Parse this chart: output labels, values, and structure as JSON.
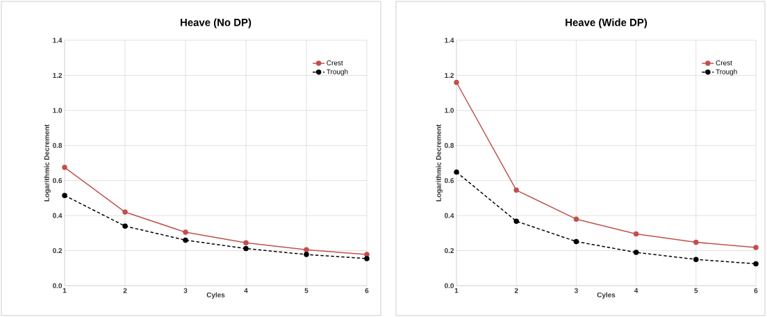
{
  "chart_data": [
    {
      "type": "line",
      "title": "Heave (No DP)",
      "xlabel": "Cyles",
      "ylabel": "Logarithmic Decrement",
      "x": [
        1,
        2,
        3,
        4,
        5,
        6
      ],
      "xlim": [
        1,
        6
      ],
      "xticks": [
        1,
        2,
        3,
        4,
        5,
        6
      ],
      "ylim": [
        0,
        1.4
      ],
      "yticks": [
        {
          "value": 0,
          "label": "0.0"
        },
        {
          "value": 0.2,
          "label": "0.2"
        },
        {
          "value": 0.4,
          "label": "0.4"
        },
        {
          "value": 0.6,
          "label": "0.6"
        },
        {
          "value": 0.8,
          "label": "0.8"
        },
        {
          "value": 1.0,
          "label": "1.0"
        },
        {
          "value": 1.2,
          "label": "1.2"
        },
        {
          "value": 1.4,
          "label": "1.4"
        }
      ],
      "grid": true,
      "legend": "top right",
      "marker": "circle",
      "series": [
        {
          "name": "Crest",
          "color": "#c0504d",
          "line_style": "solid",
          "values": [
            0.675,
            0.42,
            0.305,
            0.245,
            0.205,
            0.178
          ]
        },
        {
          "name": "Trough",
          "color": "#000000",
          "line_style": "dashed",
          "values": [
            0.515,
            0.34,
            0.26,
            0.212,
            0.178,
            0.155
          ]
        }
      ]
    },
    {
      "type": "line",
      "title": "Heave (Wide DP)",
      "xlabel": "Cyles",
      "ylabel": "Logarithmic Decrement",
      "x": [
        1,
        2,
        3,
        4,
        5,
        6
      ],
      "xlim": [
        1,
        6
      ],
      "xticks": [
        1,
        2,
        3,
        4,
        5,
        6
      ],
      "ylim": [
        0,
        1.4
      ],
      "yticks": [
        {
          "value": 0,
          "label": "0.0"
        },
        {
          "value": 0.2,
          "label": "0.2"
        },
        {
          "value": 0.4,
          "label": "0.4"
        },
        {
          "value": 0.6,
          "label": "0.6"
        },
        {
          "value": 0.8,
          "label": "0.8"
        },
        {
          "value": 1.0,
          "label": "1.0"
        },
        {
          "value": 1.2,
          "label": "1.2"
        },
        {
          "value": 1.4,
          "label": "1.4"
        }
      ],
      "grid": true,
      "legend": "top right",
      "marker": "circle",
      "series": [
        {
          "name": "Crest",
          "color": "#c0504d",
          "line_style": "solid",
          "values": [
            1.16,
            0.545,
            0.38,
            0.295,
            0.248,
            0.218
          ]
        },
        {
          "name": "Trough",
          "color": "#000000",
          "line_style": "dashed",
          "values": [
            0.648,
            0.368,
            0.252,
            0.19,
            0.15,
            0.125
          ]
        }
      ]
    }
  ]
}
